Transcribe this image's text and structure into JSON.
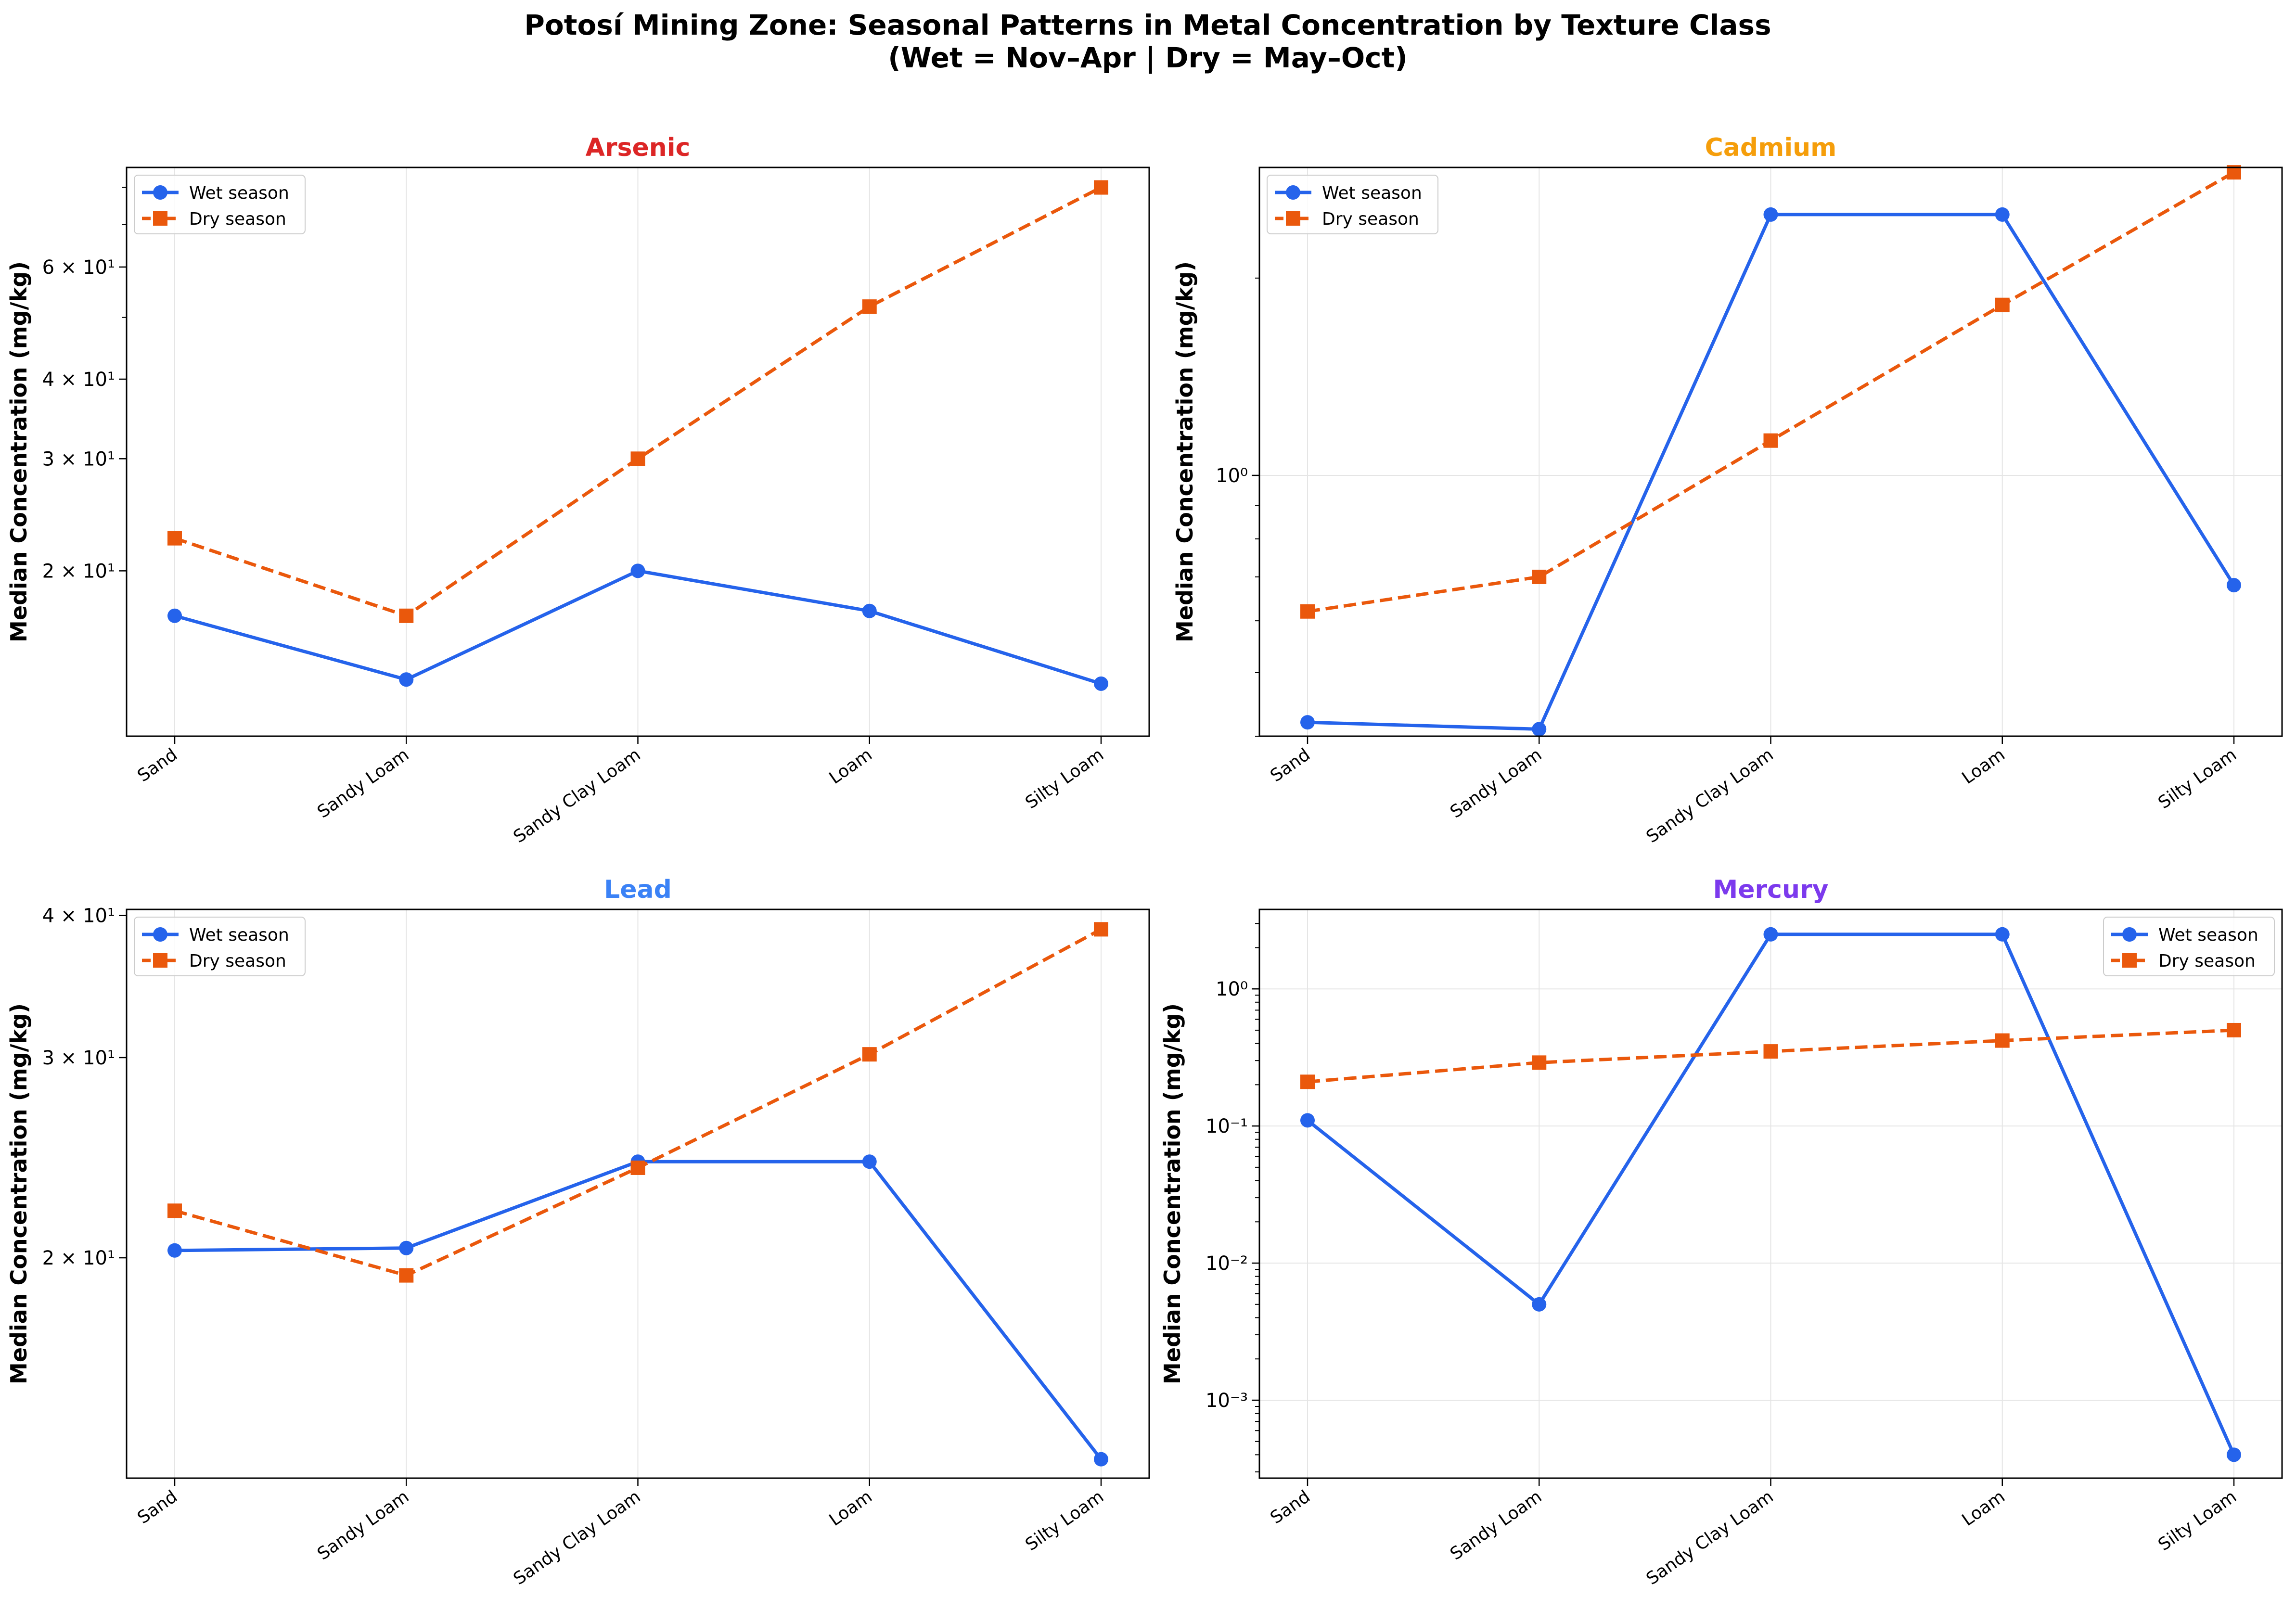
{
  "figure": {
    "title_line1": "Potosí Mining Zone: Seasonal Patterns in Metal Concentration by Texture Class",
    "title_line2": "(Wet = Nov–Apr | Dry = May–Oct)"
  },
  "colors": {
    "wet": "#2563eb",
    "dry": "#ea580c"
  },
  "chart_data": [
    {
      "type": "line",
      "title": "Arsenic",
      "title_color": "#dc2626",
      "ylabel": "Median Concentration (mg/kg)",
      "yscale": "log",
      "ylim": [
        11.0,
        86.0
      ],
      "categories": [
        "Sand",
        "Sandy Loam",
        "Sandy Clay Loam",
        "Loam",
        "Silty Loam"
      ],
      "yticks": [
        {
          "value": 20,
          "label": "2 × 10¹"
        },
        {
          "value": 30,
          "label": "3 × 10¹"
        },
        {
          "value": 40,
          "label": "4 × 10¹"
        },
        {
          "value": 60,
          "label": "6 × 10¹"
        }
      ],
      "legend": "upper-left",
      "series": [
        {
          "name": "Wet season",
          "values": [
            17.0,
            13.5,
            20.0,
            17.3,
            13.3
          ]
        },
        {
          "name": "Dry season",
          "values": [
            22.5,
            17.0,
            30.0,
            52.0,
            80.0
          ]
        }
      ]
    },
    {
      "type": "line",
      "title": "Cadmium",
      "title_color": "#f59e0b",
      "ylabel": "Median Concentration (mg/kg)",
      "yscale": "log",
      "ylim": [
        0.4,
        2.95
      ],
      "categories": [
        "Sand",
        "Sandy Loam",
        "Sandy Clay Loam",
        "Loam",
        "Silty Loam"
      ],
      "yticks": [
        {
          "value": 1,
          "label": "10⁰"
        }
      ],
      "legend": "upper-left",
      "series": [
        {
          "name": "Wet season",
          "values": [
            0.42,
            0.41,
            2.5,
            2.5,
            0.68
          ]
        },
        {
          "name": "Dry season",
          "values": [
            0.62,
            0.7,
            1.13,
            1.82,
            2.9
          ]
        }
      ]
    },
    {
      "type": "line",
      "title": "Lead",
      "title_color": "#3b82f6",
      "ylabel": "Median Concentration (mg/kg)",
      "yscale": "log",
      "ylim": [
        12.8,
        40.5
      ],
      "categories": [
        "Sand",
        "Sandy Loam",
        "Sandy Clay Loam",
        "Loam",
        "Silty Loam"
      ],
      "yticks": [
        {
          "value": 20,
          "label": "2 × 10¹"
        },
        {
          "value": 30,
          "label": "3 × 10¹"
        },
        {
          "value": 40,
          "label": "4 × 10¹"
        }
      ],
      "legend": "upper-left",
      "series": [
        {
          "name": "Wet season",
          "values": [
            20.3,
            20.4,
            24.3,
            24.3,
            13.3
          ]
        },
        {
          "name": "Dry season",
          "values": [
            22.0,
            19.3,
            24.0,
            30.2,
            38.9
          ]
        }
      ]
    },
    {
      "type": "line",
      "title": "Mercury",
      "title_color": "#7c3aed",
      "ylabel": "Median Concentration (mg/kg)",
      "yscale": "log",
      "ylim": [
        0.00027,
        3.8
      ],
      "categories": [
        "Sand",
        "Sandy Loam",
        "Sandy Clay Loam",
        "Loam",
        "Silty Loam"
      ],
      "yticks": [
        {
          "value": 0.001,
          "label": "10⁻³"
        },
        {
          "value": 0.01,
          "label": "10⁻²"
        },
        {
          "value": 0.1,
          "label": "10⁻¹"
        },
        {
          "value": 1,
          "label": "10⁰"
        }
      ],
      "legend": "upper-right",
      "series": [
        {
          "name": "Wet season",
          "values": [
            0.11,
            0.005,
            2.5,
            2.5,
            0.0004
          ]
        },
        {
          "name": "Dry season",
          "values": [
            0.21,
            0.29,
            0.35,
            0.42,
            0.5
          ]
        }
      ]
    }
  ]
}
